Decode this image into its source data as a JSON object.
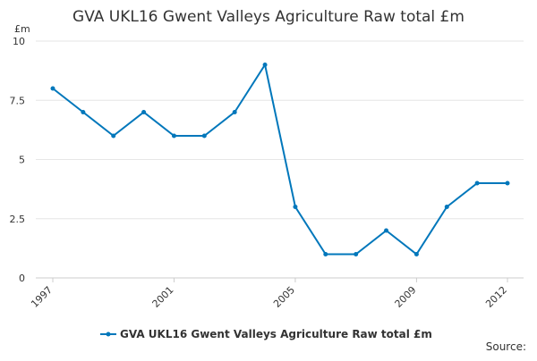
{
  "chart_data": {
    "type": "line",
    "title": "GVA UKL16 Gwent Valleys Agriculture Raw total £m",
    "y_unit": "£m",
    "source": "Source:",
    "x": [
      1997,
      1998,
      1999,
      2000,
      2001,
      2002,
      2003,
      2004,
      2005,
      2006,
      2007,
      2008,
      2009,
      2010,
      2011,
      2012
    ],
    "series": [
      {
        "name": "GVA UKL16 Gwent Valleys Agriculture Raw total £m",
        "color": "#0077bb",
        "values": [
          8,
          7,
          6,
          7,
          6,
          6,
          7,
          9,
          3,
          1,
          1,
          2,
          1,
          3,
          4,
          4
        ]
      }
    ],
    "xlim": [
      1997,
      2012
    ],
    "xticks": [
      1997,
      2001,
      2005,
      2009,
      2012
    ],
    "ylim": [
      0,
      10
    ],
    "yticks": [
      0,
      2.5,
      5,
      7.5,
      10
    ],
    "grid": true
  }
}
